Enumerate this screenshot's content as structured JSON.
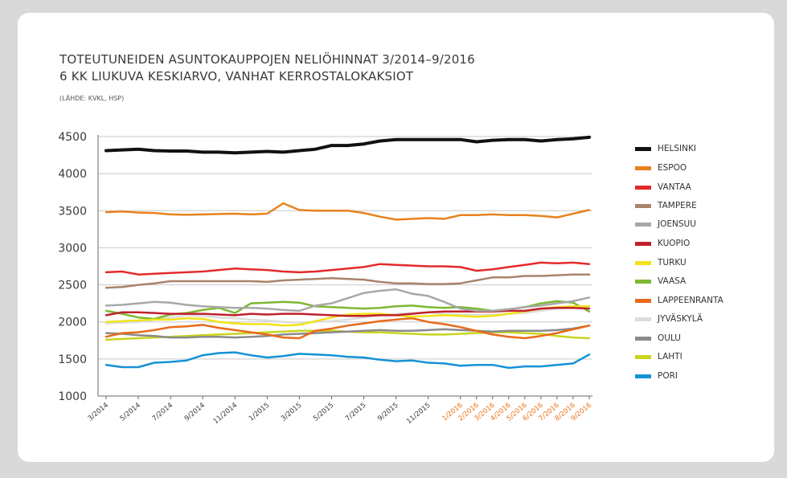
{
  "chart_data": {
    "type": "line",
    "title": "TOTEUTUNEIDEN ASUNTOKAUPPOJEN NELIÖHINNAT 3/2014–9/2016",
    "subtitle": "6 KK LIUKUVA KESKIARVO, VANHAT KERROSTALOKAKSIOT",
    "source": "(LÄHDE: KVKL, HSP)",
    "xlabel": "",
    "ylabel": "",
    "ylim": [
      1000,
      4500
    ],
    "yticks": [
      "4500",
      "4000",
      "3500",
      "3000",
      "2500",
      "2000",
      "1500",
      "1000"
    ],
    "yticks_values": [
      4500,
      4000,
      3500,
      3000,
      2500,
      2000,
      1500,
      1000
    ],
    "x_labels": [
      "3/2014",
      "5/2014",
      "7/2014",
      "9/2014",
      "11/2014",
      "1/2015",
      "3/2015",
      "5/2015",
      "7/2015",
      "9/2015",
      "11/2015",
      "1/2016",
      "2/2016",
      "3/2016",
      "4/2016",
      "5/2016",
      "6/2016",
      "7/2016",
      "8/2016",
      "9/2016"
    ],
    "x_label_months": [
      0,
      2,
      4,
      6,
      8,
      10,
      12,
      14,
      16,
      18,
      20,
      22,
      23,
      24,
      25,
      26,
      27,
      28,
      29,
      30
    ],
    "x_label_colors": [
      "#3a3a3a",
      "#3a3a3a",
      "#3a3a3a",
      "#3a3a3a",
      "#3a3a3a",
      "#3a3a3a",
      "#3a3a3a",
      "#3a3a3a",
      "#3a3a3a",
      "#3a3a3a",
      "#3a3a3a",
      "#e8731e",
      "#e8731e",
      "#e8731e",
      "#e8731e",
      "#e8731e",
      "#e8731e",
      "#e8731e",
      "#e8731e",
      "#e8731e"
    ],
    "months": [
      "3/2014",
      "4/2014",
      "5/2014",
      "6/2014",
      "7/2014",
      "8/2014",
      "9/2014",
      "10/2014",
      "11/2014",
      "12/2014",
      "1/2015",
      "2/2015",
      "3/2015",
      "4/2015",
      "5/2015",
      "6/2015",
      "7/2015",
      "8/2015",
      "9/2015",
      "10/2015",
      "11/2015",
      "12/2015",
      "1/2016",
      "2/2016",
      "3/2016",
      "4/2016",
      "5/2016",
      "6/2016",
      "7/2016",
      "8/2016",
      "9/2016"
    ],
    "grid": "horizontal",
    "legend_position": "right",
    "series": [
      {
        "name": "HELSINKI",
        "color": "#111111",
        "width": 4,
        "values": [
          4310,
          4320,
          4330,
          4310,
          4305,
          4305,
          4290,
          4290,
          4280,
          4290,
          4300,
          4290,
          4310,
          4330,
          4380,
          4380,
          4400,
          4440,
          4460,
          4460,
          4460,
          4460,
          4460,
          4430,
          4450,
          4460,
          4460,
          4440,
          4460,
          4470,
          4490
        ]
      },
      {
        "name": "ESPOO",
        "color": "#e8821e",
        "width": 2.5,
        "values": [
          3480,
          3490,
          3475,
          3470,
          3450,
          3445,
          3450,
          3455,
          3460,
          3450,
          3460,
          3600,
          3510,
          3500,
          3500,
          3500,
          3470,
          3420,
          3380,
          3390,
          3400,
          3390,
          3440,
          3440,
          3450,
          3440,
          3440,
          3430,
          3410,
          3460,
          3510
        ]
      },
      {
        "name": "VANTAA",
        "color": "#e32a2a",
        "width": 2.5,
        "values": [
          2670,
          2680,
          2640,
          2650,
          2660,
          2670,
          2680,
          2700,
          2720,
          2710,
          2700,
          2680,
          2670,
          2680,
          2700,
          2720,
          2740,
          2780,
          2770,
          2760,
          2750,
          2750,
          2740,
          2690,
          2710,
          2740,
          2770,
          2800,
          2790,
          2800,
          2780
        ]
      },
      {
        "name": "TAMPERE",
        "color": "#a9836a",
        "width": 2.5,
        "values": [
          2460,
          2470,
          2500,
          2520,
          2550,
          2550,
          2550,
          2550,
          2550,
          2550,
          2540,
          2560,
          2570,
          2580,
          2590,
          2580,
          2570,
          2540,
          2520,
          2520,
          2510,
          2510,
          2520,
          2560,
          2600,
          2600,
          2620,
          2620,
          2630,
          2640,
          2640
        ]
      },
      {
        "name": "JOENSUU",
        "color": "#a8a8a8",
        "width": 2.5,
        "values": [
          2220,
          2230,
          2250,
          2270,
          2260,
          2230,
          2210,
          2200,
          2190,
          2190,
          2180,
          2160,
          2150,
          2220,
          2250,
          2320,
          2390,
          2420,
          2440,
          2380,
          2350,
          2270,
          2180,
          2150,
          2150,
          2170,
          2200,
          2220,
          2250,
          2280,
          2330
        ]
      },
      {
        "name": "KUOPIO",
        "color": "#c0202e",
        "width": 2.5,
        "values": [
          2090,
          2130,
          2130,
          2120,
          2110,
          2110,
          2110,
          2100,
          2090,
          2110,
          2100,
          2110,
          2110,
          2100,
          2090,
          2080,
          2080,
          2090,
          2090,
          2110,
          2130,
          2140,
          2140,
          2140,
          2140,
          2150,
          2150,
          2180,
          2190,
          2190,
          2180
        ]
      },
      {
        "name": "TURKU",
        "color": "#f2e21a",
        "width": 2.5,
        "values": [
          2000,
          2010,
          2020,
          2030,
          2030,
          2050,
          2040,
          2000,
          1980,
          1970,
          1970,
          1950,
          1960,
          2010,
          2060,
          2100,
          2110,
          2110,
          2090,
          2070,
          2080,
          2090,
          2080,
          2070,
          2080,
          2110,
          2140,
          2180,
          2200,
          2210,
          2210
        ]
      },
      {
        "name": "VAASA",
        "color": "#7db832",
        "width": 2.5,
        "values": [
          2150,
          2110,
          2060,
          2040,
          2100,
          2120,
          2160,
          2190,
          2120,
          2250,
          2260,
          2270,
          2260,
          2210,
          2200,
          2190,
          2180,
          2190,
          2210,
          2220,
          2200,
          2190,
          2200,
          2180,
          2150,
          2170,
          2200,
          2250,
          2280,
          2260,
          2140
        ]
      },
      {
        "name": "LAPPEENRANTA",
        "color": "#e86a1a",
        "width": 2.5,
        "values": [
          1800,
          1850,
          1860,
          1890,
          1930,
          1940,
          1960,
          1920,
          1890,
          1860,
          1830,
          1790,
          1780,
          1880,
          1910,
          1950,
          1980,
          2010,
          2030,
          2050,
          2000,
          1970,
          1930,
          1880,
          1830,
          1800,
          1780,
          1810,
          1850,
          1900,
          1950
        ]
      },
      {
        "name": "JYVÄSKYLÄ",
        "color": "#dedede",
        "width": 2.5,
        "values": [
          1980,
          1990,
          2000,
          2030,
          2060,
          2090,
          2080,
          2060,
          2050,
          2030,
          2020,
          2000,
          1990,
          2000,
          2010,
          2030,
          2060,
          2090,
          2110,
          2120,
          2130,
          2110,
          2100,
          2100,
          2100,
          2110,
          2120,
          2150,
          2180,
          2200,
          2210
        ]
      },
      {
        "name": "OULU",
        "color": "#8a8a8a",
        "width": 2.5,
        "values": [
          1850,
          1840,
          1820,
          1810,
          1790,
          1790,
          1800,
          1800,
          1790,
          1800,
          1810,
          1830,
          1840,
          1850,
          1860,
          1870,
          1880,
          1890,
          1880,
          1880,
          1890,
          1900,
          1890,
          1880,
          1870,
          1880,
          1880,
          1880,
          1890,
          1910,
          1950
        ]
      },
      {
        "name": "LAHTI",
        "color": "#c8d41e",
        "width": 2.5,
        "values": [
          1760,
          1770,
          1780,
          1790,
          1800,
          1810,
          1820,
          1830,
          1840,
          1850,
          1860,
          1870,
          1880,
          1880,
          1880,
          1870,
          1860,
          1860,
          1850,
          1840,
          1830,
          1830,
          1840,
          1850,
          1860,
          1860,
          1850,
          1840,
          1810,
          1790,
          1780
        ]
      },
      {
        "name": "PORI",
        "color": "#1592d6",
        "width": 2.5,
        "values": [
          1420,
          1390,
          1390,
          1450,
          1460,
          1480,
          1550,
          1580,
          1590,
          1550,
          1520,
          1540,
          1570,
          1560,
          1550,
          1530,
          1520,
          1490,
          1470,
          1480,
          1450,
          1440,
          1410,
          1420,
          1420,
          1380,
          1400,
          1400,
          1420,
          1440,
          1560
        ]
      }
    ]
  }
}
